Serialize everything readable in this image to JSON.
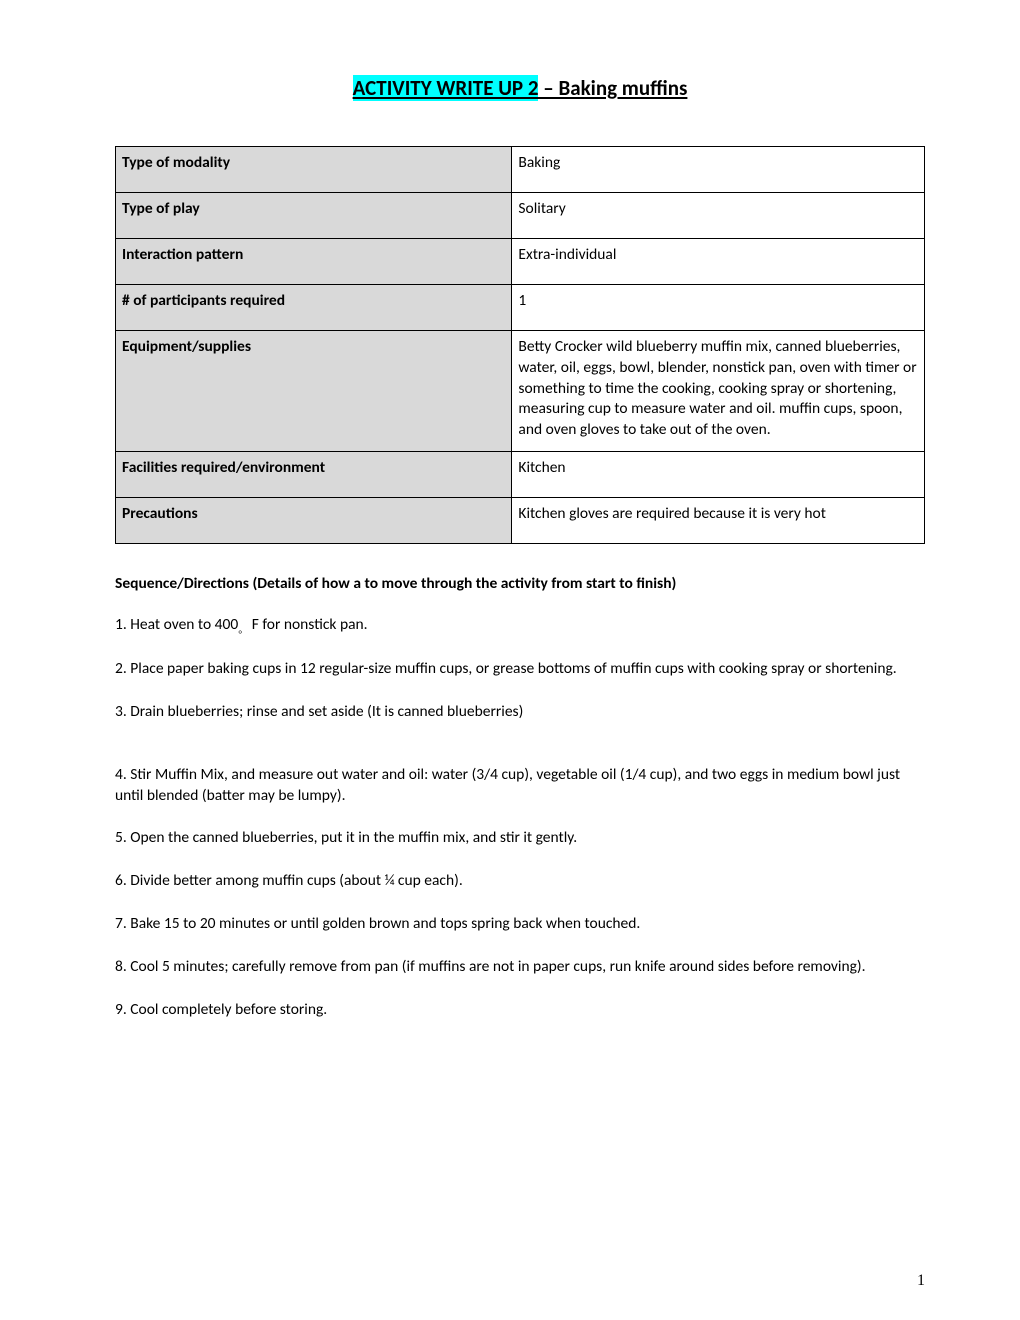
{
  "title": {
    "highlighted": "ACTIVITY WRITE UP 2",
    "rest": " – Baking muffins "
  },
  "info_table": {
    "rows": [
      {
        "label": "Type of modality",
        "value": "Baking",
        "tight": false
      },
      {
        "label": "Type of play",
        "value": "Solitary",
        "tight": false
      },
      {
        "label": "Interaction pattern",
        "value": "Extra-individual",
        "tight": false
      },
      {
        "label": "# of participants required",
        "value": "1",
        "tight": false
      },
      {
        "label": "Equipment/supplies",
        "value": "Betty Crocker wild blueberry muffin mix, canned blueberries, water, oil, eggs, bowl, blender, nonstick pan, oven with timer or something to time the cooking, cooking spray or shortening, measuring cup to measure water and oil. muffin cups, spoon, and oven gloves to take out of the oven.",
        "tight": true
      },
      {
        "label": "Facilities required/environment",
        "value": "Kitchen",
        "tight": false
      },
      {
        "label": "Precautions",
        "value": "Kitchen gloves are required because it is very hot",
        "tight": false
      }
    ]
  },
  "sequence": {
    "heading": "Sequence/Directions (Details of how a to move through the activity from start to finish)",
    "steps": [
      {
        "pre": "1. Heat oven to 400",
        "sub": "。",
        "post": " F for nonstick pan."
      },
      {
        "text": "2. Place paper baking cups in 12 regular-size muffin cups, or grease bottoms of muffin cups with cooking spray or shortening."
      },
      {
        "text": "3. Drain blueberries; rinse and set aside (It is canned blueberries)",
        "extra_gap": true
      },
      {
        "text": "4. Stir Muffin Mix, and measure out water and oil: water (3/4 cup), vegetable oil (1/4 cup), and two eggs in medium bowl just until blended (batter may be lumpy)."
      },
      {
        "text": "5. Open the canned blueberries, put it in the muffin mix, and stir it gently."
      },
      {
        "text": "6. Divide better among muffin cups (about ¼ cup each)."
      },
      {
        "text": "7. Bake 15 to 20 minutes or until golden brown and tops spring back when touched."
      },
      {
        "text": "8. Cool 5 minutes; carefully remove from pan (if muffins are not in paper cups, run knife around sides before removing)."
      },
      {
        "text": "9. Cool completely before storing."
      }
    ]
  },
  "page_number": "1",
  "colors": {
    "highlight": "#00ffff",
    "label_bg": "#d9d9d9",
    "border": "#000000",
    "text": "#000000",
    "background": "#ffffff"
  }
}
